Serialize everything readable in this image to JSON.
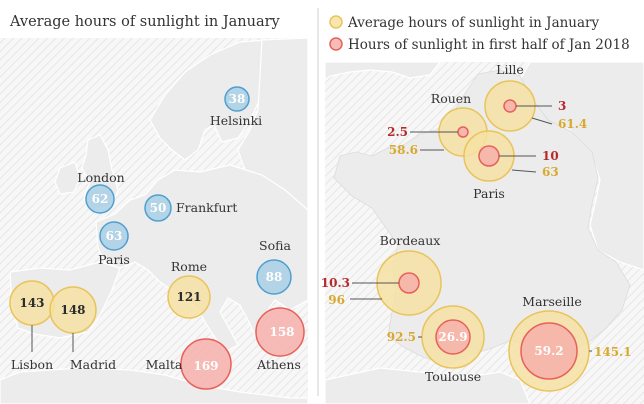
{
  "left_panel": {
    "title": "Average hours of sunlight in January",
    "cities": [
      {
        "name": "Helsinki",
        "value": "38",
        "category": "blue"
      },
      {
        "name": "London",
        "value": "62",
        "category": "blue"
      },
      {
        "name": "Frankfurt",
        "value": "50",
        "category": "blue"
      },
      {
        "name": "Paris",
        "value": "63",
        "category": "blue"
      },
      {
        "name": "Sofia",
        "value": "88",
        "category": "blue"
      },
      {
        "name": "Rome",
        "value": "121",
        "category": "yellow"
      },
      {
        "name": "Lisbon",
        "value": "143",
        "category": "yellow"
      },
      {
        "name": "Madrid",
        "value": "148",
        "category": "yellow"
      },
      {
        "name": "Athens",
        "value": "158",
        "category": "red"
      },
      {
        "name": "Malta",
        "value": "169",
        "category": "red"
      }
    ]
  },
  "right_panel": {
    "legend": [
      {
        "label": "Average hours of sunlight in January",
        "kind": "average"
      },
      {
        "label": "Hours of sunlight in first half of Jan 2018",
        "kind": "2018"
      }
    ],
    "cities": [
      {
        "name": "Lille",
        "average": "61.4",
        "jan_2018": "3"
      },
      {
        "name": "Rouen",
        "average": "58.6",
        "jan_2018": "2.5"
      },
      {
        "name": "Paris",
        "average": "63",
        "jan_2018": "10"
      },
      {
        "name": "Bordeaux",
        "average": "96",
        "jan_2018": "10.3"
      },
      {
        "name": "Toulouse",
        "average": "92.5",
        "jan_2018": "26.9"
      },
      {
        "name": "Marseille",
        "average": "145.1",
        "jan_2018": "59.2"
      }
    ]
  },
  "colors": {
    "blue_fill": "#a9cfe6",
    "blue_stroke": "#4f9fd0",
    "blue_text": "#ffffff",
    "yellow_fill": "#f6e2a3",
    "yellow_stroke": "#e9c45a",
    "yellow_text": "#2b2b2b",
    "red_fill": "#f7b0ac",
    "red_stroke": "#e8605a",
    "red_text": "#ffffff",
    "avg_label": "#d9a92e",
    "jan2018_label": "#b52a2a"
  }
}
